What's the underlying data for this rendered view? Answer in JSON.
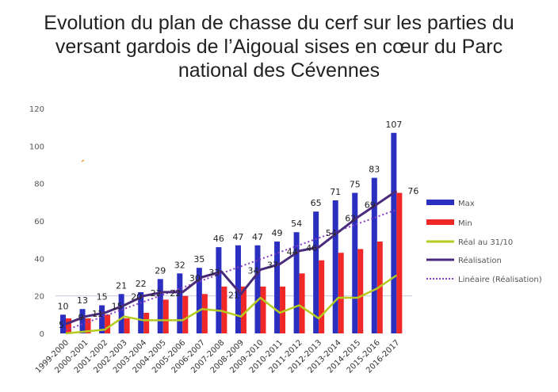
{
  "title_lines": [
    "Evolution du plan de chasse du cerf sur les parties du",
    "versant gardois de l’Aigoual sises en cœur du Parc",
    "national des Cévennes"
  ],
  "chart_data": {
    "type": "bar",
    "title": "Evolution du plan de chasse du cerf sur les parties du versant gardois de l’Aigoual sises en cœur du Parc national des Cévennes",
    "xlabel": "",
    "ylabel": "",
    "ylim": [
      0,
      120
    ],
    "yticks": [
      0,
      20,
      40,
      60,
      80,
      100,
      120
    ],
    "grid": false,
    "legend_position": "right",
    "categories": [
      "1999-2000",
      "2000-2001",
      "2001-2002",
      "2002-2003",
      "2003-2004",
      "2004-2005",
      "2005-2006",
      "2006-2007",
      "2007-2008",
      "2008-2009",
      "2009-2010",
      "2010-2011",
      "2011-2012",
      "2012-2013",
      "2013-2014",
      "2014-2015",
      "2015-2016",
      "2016-2017"
    ],
    "series": [
      {
        "name": "Max",
        "kind": "bar",
        "color": "#2a2fc0",
        "labels_shown": true,
        "values": [
          10,
          13,
          15,
          21,
          22,
          29,
          32,
          35,
          46,
          47,
          47,
          49,
          54,
          65,
          71,
          75,
          83,
          107
        ]
      },
      {
        "name": "Min",
        "kind": "bar",
        "color": "#f02828",
        "labels_shown": false,
        "values": [
          8,
          8,
          10,
          8,
          11,
          18,
          20,
          21,
          25,
          25,
          25,
          25,
          32,
          39,
          43,
          45,
          49,
          75
        ]
      },
      {
        "name": "Réal au 31/10",
        "kind": "line",
        "color": "#b5cc1e",
        "labels_shown": false,
        "values": [
          0,
          1,
          2,
          9,
          7,
          7,
          7,
          13,
          12,
          9,
          19,
          11,
          15,
          8,
          19,
          19,
          24,
          31
        ]
      },
      {
        "name": "Réalisation",
        "kind": "line",
        "color": "#4a2a7a",
        "labels_shown": true,
        "values": [
          5,
          9,
          11,
          15,
          20,
          22,
          22,
          30,
          33,
          21,
          34,
          37,
          44,
          46,
          54,
          62,
          69,
          76
        ]
      },
      {
        "name": "Linéaire (Réalisation)",
        "kind": "trendline",
        "color": "#8a3cc0",
        "labels_shown": false,
        "of_series": "Réalisation"
      }
    ]
  }
}
